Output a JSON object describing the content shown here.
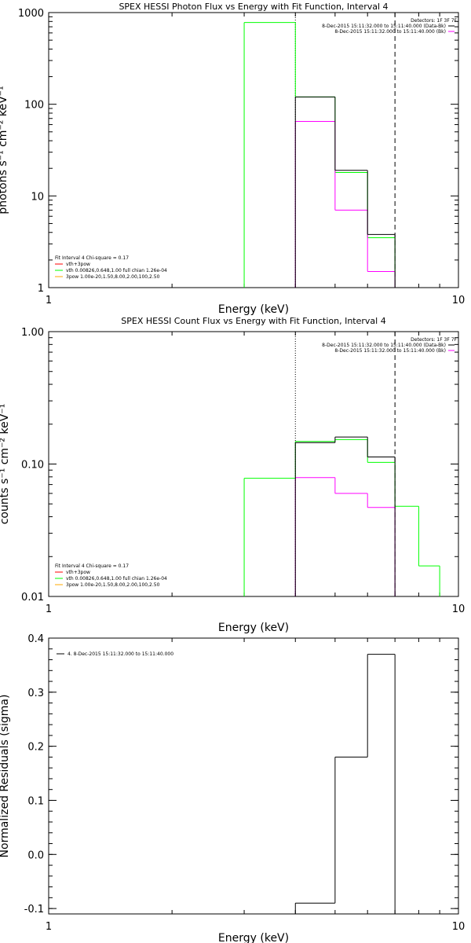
{
  "chart_data": [
    {
      "type": "histogram",
      "title": "SPEX HESSI Photon Flux vs Energy with Fit Function, Interval 4",
      "xlabel": "Energy (keV)",
      "ylabel": "photons s⁻¹ cm⁻² keV⁻¹",
      "xscale": "log",
      "yscale": "log",
      "xlim": [
        1,
        10
      ],
      "ylim": [
        1,
        1000
      ],
      "xticks": [
        {
          "v": 1,
          "label": "1"
        },
        {
          "v": 10,
          "label": "10"
        }
      ],
      "yticks": [
        {
          "v": 1,
          "label": "1"
        },
        {
          "v": 10,
          "label": "10"
        },
        {
          "v": 100,
          "label": "100"
        },
        {
          "v": 1000,
          "label": "1000"
        }
      ],
      "fit_range_lines": [
        {
          "x": 4.0,
          "style": "dotted"
        },
        {
          "x": 7.0,
          "style": "dashed"
        }
      ],
      "corner_text": [
        "Detectors: 1F 3F 7F",
        "8-Dec-2015 15:11:32.000 to 15:11:40.000 (Data-Bk)",
        "8-Dec-2015 15:11:32.000 to 15:11:40.000 (Bk)"
      ],
      "legend_lines": [
        "Fit Interval 4   Chi-square = 0.17",
        "vth+3pow",
        "vth 0.00826,0.648,1.00  full chian 1.26e-04",
        "3pow 1.00e-20,1.50,8.00,2.00,100,2.50"
      ],
      "series": [
        {
          "name": "Data-Bk",
          "color": "#000000",
          "edges": [
            4.0,
            5.0,
            6.0,
            7.0
          ],
          "values": [
            120,
            19,
            3.8
          ]
        },
        {
          "name": "Bk",
          "color": "#ff00ff",
          "edges": [
            4.0,
            5.0,
            6.0,
            7.0
          ],
          "values": [
            65,
            7,
            1.5
          ]
        },
        {
          "name": "vth",
          "color": "#00ff00",
          "edges": [
            3.0,
            4.0,
            5.0,
            6.0,
            7.0
          ],
          "values": [
            780,
            120,
            18,
            3.5
          ]
        }
      ]
    },
    {
      "type": "histogram",
      "title": "SPEX HESSI Count Flux vs Energy with Fit Function, Interval 4",
      "xlabel": "Energy (keV)",
      "ylabel": "counts s⁻¹ cm⁻² keV⁻¹",
      "xscale": "log",
      "yscale": "log",
      "xlim": [
        1,
        10
      ],
      "ylim": [
        0.01,
        1.0
      ],
      "xticks": [
        {
          "v": 1,
          "label": "1"
        },
        {
          "v": 10,
          "label": "10"
        }
      ],
      "yticks": [
        {
          "v": 0.01,
          "label": "0.01"
        },
        {
          "v": 0.1,
          "label": "0.10"
        },
        {
          "v": 1.0,
          "label": "1.00"
        }
      ],
      "fit_range_lines": [
        {
          "x": 4.0,
          "style": "dotted"
        },
        {
          "x": 7.0,
          "style": "dashed"
        }
      ],
      "corner_text": [
        "Detectors: 1F 3F 7F",
        "8-Dec-2015 15:11:32.000 to 15:11:40.000 (Data-Bk)",
        "8-Dec-2015 15:11:32.000 to 15:11:40.000 (Bk)"
      ],
      "legend_lines": [
        "Fit Interval 4   Chi-square = 0.17",
        "vth+3pow",
        "vth 0.00826,0.648,1.00  full chian 1.26e-04",
        "3pow 1.00e-20,1.50,8.00,2.00,100,2.50"
      ],
      "series": [
        {
          "name": "Data-Bk",
          "color": "#000000",
          "edges": [
            4.0,
            5.0,
            6.0,
            7.0
          ],
          "values": [
            0.145,
            0.16,
            0.113
          ]
        },
        {
          "name": "Bk",
          "color": "#ff00ff",
          "edges": [
            4.0,
            5.0,
            6.0,
            7.0
          ],
          "values": [
            0.079,
            0.06,
            0.047
          ]
        },
        {
          "name": "vth",
          "color": "#00ff00",
          "edges": [
            3.0,
            4.0,
            5.0,
            6.0,
            7.0,
            8.0,
            9.0
          ],
          "values": [
            0.078,
            0.148,
            0.153,
            0.103,
            0.048,
            0.017
          ]
        }
      ]
    },
    {
      "type": "histogram",
      "title": "",
      "xlabel": "Energy (keV)",
      "ylabel": "Normalized Residuals (sigma)",
      "xscale": "log",
      "yscale": "linear",
      "xlim": [
        1,
        10
      ],
      "ylim": [
        -0.11,
        0.4
      ],
      "xticks": [
        {
          "v": 1,
          "label": "1"
        },
        {
          "v": 10,
          "label": "10"
        }
      ],
      "yticks": [
        {
          "v": -0.1,
          "label": "-0.1"
        },
        {
          "v": 0.0,
          "label": "0.0"
        },
        {
          "v": 0.1,
          "label": "0.1"
        },
        {
          "v": 0.2,
          "label": "0.2"
        },
        {
          "v": 0.3,
          "label": "0.3"
        },
        {
          "v": 0.4,
          "label": "0.4"
        }
      ],
      "fit_range_lines": [],
      "corner_text": [],
      "legend_lines": [
        "4.  8-Dec-2015 15:11:32.000 to 15:11:40.000"
      ],
      "series": [
        {
          "name": "4.  8-Dec-2015 15:11:32.000 to 15:11:40.000",
          "color": "#000000",
          "edges": [
            4.0,
            5.0,
            6.0,
            7.0
          ],
          "values": [
            -0.09,
            0.18,
            0.37
          ]
        }
      ]
    }
  ]
}
